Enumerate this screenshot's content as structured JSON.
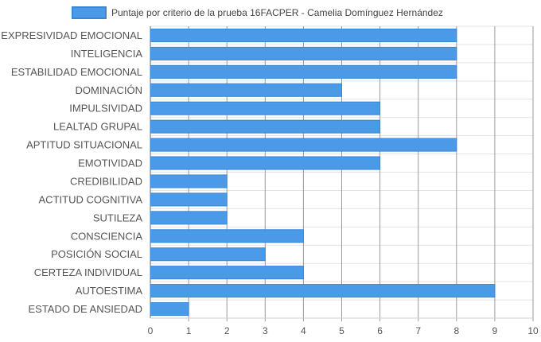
{
  "chart_data": {
    "type": "bar",
    "orientation": "horizontal",
    "legend_position": "top",
    "grid": true,
    "xlim": [
      0,
      10
    ],
    "ticks": [
      "0",
      "1",
      "2",
      "3",
      "4",
      "5",
      "6",
      "7",
      "8",
      "9",
      "10"
    ],
    "categories": [
      "EXPRESIVIDAD EMOCIONAL",
      "INTELIGENCIA",
      "ESTABILIDAD EMOCIONAL",
      "DOMINACIÓN",
      "IMPULSIVIDAD",
      "LEALTAD GRUPAL",
      "APTITUD SITUACIONAL",
      "EMOTIVIDAD",
      "CREDIBILIDAD",
      "ACTITUD COGNITIVA",
      "SUTILEZA",
      "CONSCIENCIA",
      "POSICIÓN SOCIAL",
      "CERTEZA INDIVIDUAL",
      "AUTOESTIMA",
      "ESTADO DE ANSIEDAD"
    ],
    "series": [
      {
        "name": "Puntaje por criterio de la prueba 16FACPER - Camelia Domínguez Hernández",
        "color": "#4a9ae8",
        "border_color": "#3a86d8",
        "values": [
          8,
          8,
          8,
          5,
          6,
          6,
          8,
          6,
          2,
          2,
          2,
          4,
          3,
          4,
          9,
          1
        ]
      }
    ]
  }
}
